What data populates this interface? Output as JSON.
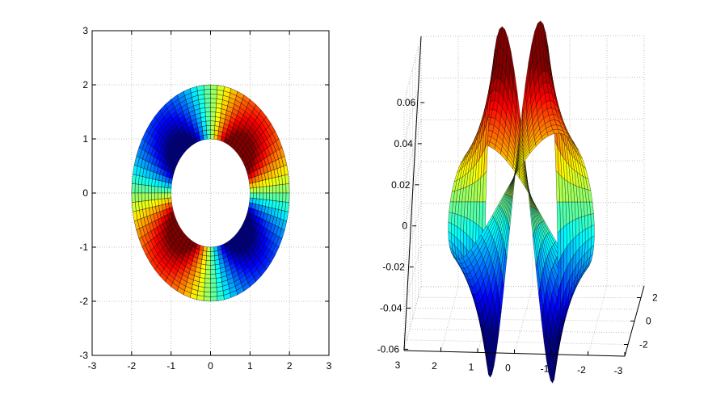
{
  "chart_data": [
    {
      "type": "surface-2d-view",
      "description_type": "annulus colored surface, top view",
      "xlim": [
        -3,
        3
      ],
      "ylim": [
        -3,
        3
      ],
      "xticks": [
        -3,
        -2,
        -1,
        0,
        1,
        2,
        3
      ],
      "yticks": [
        -3,
        -2,
        -1,
        0,
        1,
        2,
        3
      ],
      "xtick_labels": [
        "-3",
        "-2",
        "-1",
        "0",
        "1",
        "2",
        "3"
      ],
      "ytick_labels": [
        "-3",
        "-2",
        "-1",
        "0",
        "1",
        "2",
        "3"
      ],
      "grid": true,
      "inner_radius": 1,
      "outer_radius": 2,
      "colormap": "jet"
    },
    {
      "type": "surface-3d",
      "zlim": [
        -0.06,
        0.06
      ],
      "zticks": [
        -0.06,
        -0.04,
        -0.02,
        0,
        0.02,
        0.04,
        0.06
      ],
      "ztick_labels": [
        "-0.06",
        "-0.04",
        "-0.02",
        "0",
        "0.02",
        "0.04",
        "0.06"
      ],
      "xticks": [
        3,
        2,
        1,
        0,
        -1,
        -2,
        -3
      ],
      "xtick_labels": [
        "3",
        "2",
        "1",
        "0",
        "-1",
        "-2",
        "-3"
      ],
      "yticks": [
        -2,
        0,
        2
      ],
      "ytick_labels": [
        "-2",
        "0",
        "2"
      ],
      "grid": true,
      "colormap": "jet"
    }
  ]
}
